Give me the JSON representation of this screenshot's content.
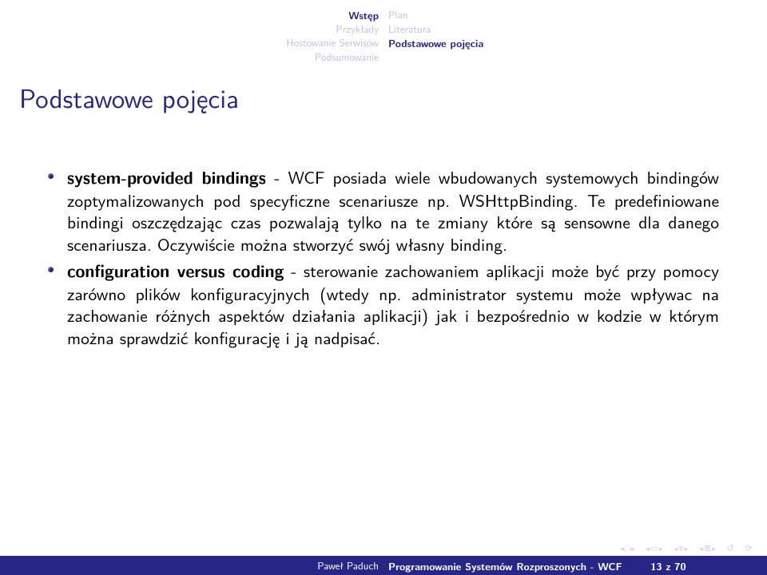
{
  "nav": {
    "left": [
      {
        "label": "Wstęp",
        "bold": true,
        "highlight": true
      },
      {
        "label": "Przykłady",
        "bold": false,
        "highlight": false
      },
      {
        "label": "Hostowanie Serwisów",
        "bold": false,
        "highlight": false
      },
      {
        "label": "Podsumowanie",
        "bold": false,
        "highlight": false
      }
    ],
    "right": [
      {
        "label": "Plan",
        "bold": false,
        "highlight": false
      },
      {
        "label": "Literatura",
        "bold": false,
        "highlight": false
      },
      {
        "label": "Podstawowe pojęcia",
        "bold": true,
        "highlight": true
      }
    ]
  },
  "title": "Podstawowe pojęcia",
  "bullets": [
    {
      "term": "system-provided bindings",
      "text": " - WCF posiada wiele wbudowanych systemowych bindingów zoptymalizowanych pod specyficzne scenariusze np. WSHttpBinding. Te predefiniowane bindingi oszczędzając czas pozwalają tylko na te zmiany które są sensowne dla danego scenariusza. Oczywiście można stworzyć swój własny binding."
    },
    {
      "term": "configuration versus coding",
      "text": " - sterowanie zachowaniem aplikacji może być przy pomocy zarówno plików konfiguracyjnych (wtedy np. administrator systemu może wpływac na zachowanie różnych aspektów działania aplikacji) jak i bezpośrednio w kodzie w którym można sprawdzić konfigurację i ją nadpisać."
    }
  ],
  "footer": {
    "author": "Paweł Paduch",
    "title": "Programowanie Systemów Rozproszonych - WCF",
    "page": "13 z 70"
  },
  "colors": {
    "accent": "#262686",
    "muted": "#bfbfe6",
    "bg": "#ffffff",
    "text": "#000000"
  }
}
